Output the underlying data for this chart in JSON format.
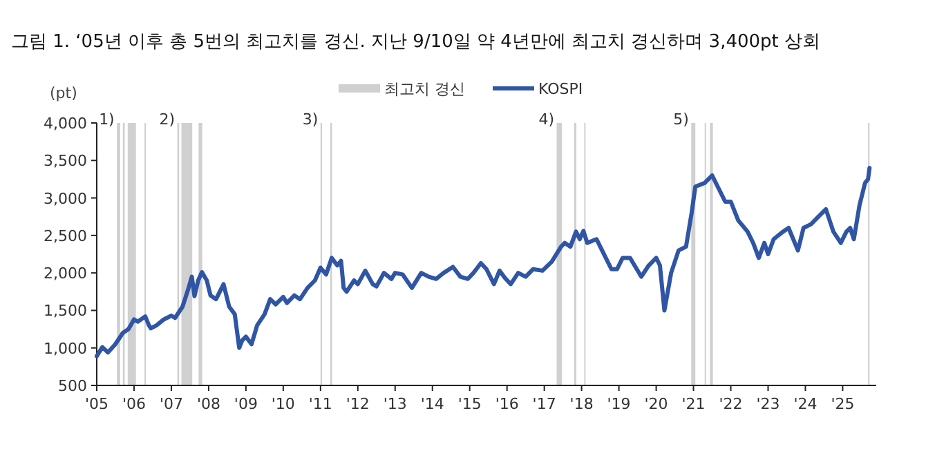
{
  "chart_data": {
    "type": "line",
    "title": "그림 1. ‘05년 이후 총 5번의 최고치를 경신. 지난 9/10일 약 4년만에 최고치 경신하며 3,400pt 상회",
    "ylabel": "(pt)",
    "legend": "top",
    "x": [
      2005.0,
      2005.15,
      2005.3,
      2005.5,
      2005.7,
      2005.85,
      2006.0,
      2006.1,
      2006.3,
      2006.4,
      2006.45,
      2006.6,
      2006.8,
      2007.0,
      2007.1,
      2007.3,
      2007.45,
      2007.55,
      2007.62,
      2007.72,
      2007.82,
      2007.95,
      2008.05,
      2008.2,
      2008.4,
      2008.55,
      2008.7,
      2008.82,
      2008.9,
      2009.0,
      2009.15,
      2009.3,
      2009.5,
      2009.65,
      2009.8,
      2010.0,
      2010.1,
      2010.3,
      2010.45,
      2010.65,
      2010.85,
      2011.0,
      2011.15,
      2011.3,
      2011.45,
      2011.55,
      2011.62,
      2011.7,
      2011.9,
      2012.0,
      2012.2,
      2012.4,
      2012.5,
      2012.7,
      2012.9,
      2013.0,
      2013.2,
      2013.45,
      2013.7,
      2013.9,
      2014.1,
      2014.3,
      2014.55,
      2014.75,
      2014.95,
      2015.1,
      2015.3,
      2015.45,
      2015.65,
      2015.8,
      2015.95,
      2016.1,
      2016.3,
      2016.5,
      2016.7,
      2016.95,
      2017.2,
      2017.45,
      2017.55,
      2017.7,
      2017.85,
      2017.95,
      2018.05,
      2018.15,
      2018.4,
      2018.55,
      2018.8,
      2018.95,
      2019.1,
      2019.3,
      2019.6,
      2019.8,
      2020.0,
      2020.1,
      2020.22,
      2020.4,
      2020.6,
      2020.8,
      2020.95,
      2021.05,
      2021.3,
      2021.5,
      2021.65,
      2021.85,
      2022.0,
      2022.2,
      2022.45,
      2022.6,
      2022.75,
      2022.9,
      2023.0,
      2023.15,
      2023.4,
      2023.55,
      2023.8,
      2023.95,
      2024.15,
      2024.35,
      2024.55,
      2024.75,
      2024.95,
      2025.1,
      2025.2,
      2025.3,
      2025.45,
      2025.6,
      2025.68,
      2025.72
    ],
    "series": [
      {
        "name": "KOSPI",
        "color": "#2f55a4",
        "values": [
          890,
          1010,
          940,
          1050,
          1200,
          1250,
          1380,
          1350,
          1420,
          1300,
          1260,
          1300,
          1380,
          1430,
          1400,
          1550,
          1780,
          1950,
          1690,
          1900,
          2010,
          1900,
          1700,
          1650,
          1850,
          1550,
          1450,
          1000,
          1100,
          1150,
          1050,
          1300,
          1450,
          1650,
          1580,
          1680,
          1600,
          1700,
          1650,
          1800,
          1900,
          2070,
          1980,
          2200,
          2100,
          2160,
          1800,
          1750,
          1900,
          1850,
          2030,
          1850,
          1820,
          2000,
          1920,
          2000,
          1980,
          1800,
          2000,
          1950,
          1920,
          2000,
          2080,
          1950,
          1920,
          2000,
          2130,
          2050,
          1850,
          2030,
          1930,
          1850,
          2000,
          1950,
          2050,
          2030,
          2150,
          2350,
          2400,
          2350,
          2550,
          2450,
          2560,
          2400,
          2450,
          2300,
          2050,
          2050,
          2200,
          2200,
          1950,
          2100,
          2200,
          2100,
          1500,
          2000,
          2300,
          2350,
          2800,
          3150,
          3200,
          3300,
          3150,
          2950,
          2950,
          2700,
          2550,
          2400,
          2200,
          2400,
          2250,
          2450,
          2550,
          2600,
          2300,
          2600,
          2650,
          2750,
          2850,
          2550,
          2400,
          2550,
          2600,
          2450,
          2900,
          3200,
          3250,
          3400
        ]
      }
    ],
    "xlim": [
      2005,
      2025.9
    ],
    "ylim": [
      500,
      4000
    ],
    "xticks": [
      {
        "value": 2005,
        "label": "'05"
      },
      {
        "value": 2006,
        "label": "'06"
      },
      {
        "value": 2007,
        "label": "'07"
      },
      {
        "value": 2008,
        "label": "'08"
      },
      {
        "value": 2009,
        "label": "'09"
      },
      {
        "value": 2010,
        "label": "'10"
      },
      {
        "value": 2011,
        "label": "'11"
      },
      {
        "value": 2012,
        "label": "'12"
      },
      {
        "value": 2013,
        "label": "'13"
      },
      {
        "value": 2014,
        "label": "'14"
      },
      {
        "value": 2015,
        "label": "'15"
      },
      {
        "value": 2016,
        "label": "'16"
      },
      {
        "value": 2017,
        "label": "'17"
      },
      {
        "value": 2018,
        "label": "'18"
      },
      {
        "value": 2019,
        "label": "'19"
      },
      {
        "value": 2020,
        "label": "'20"
      },
      {
        "value": 2021,
        "label": "'21"
      },
      {
        "value": 2022,
        "label": "'22"
      },
      {
        "value": 2023,
        "label": "'23"
      },
      {
        "value": 2024,
        "label": "'24"
      },
      {
        "value": 2025,
        "label": "'25"
      }
    ],
    "yticks": [
      {
        "value": 500,
        "label": "500"
      },
      {
        "value": 1000,
        "label": "1,000"
      },
      {
        "value": 1500,
        "label": "1,500"
      },
      {
        "value": 2000,
        "label": "2,000"
      },
      {
        "value": 2500,
        "label": "2,500"
      },
      {
        "value": 3000,
        "label": "3,000"
      },
      {
        "value": 3500,
        "label": "3,500"
      },
      {
        "value": 4000,
        "label": "4,000"
      }
    ],
    "bands": [
      {
        "axis": "x",
        "from": 2005.54,
        "to": 2005.63,
        "color": "#d0d0d0",
        "label": "최고치 경신"
      },
      {
        "axis": "x",
        "from": 2005.7,
        "to": 2005.75,
        "color": "#d0d0d0"
      },
      {
        "axis": "x",
        "from": 2005.83,
        "to": 2006.05,
        "color": "#d0d0d0"
      },
      {
        "axis": "x",
        "from": 2006.28,
        "to": 2006.32,
        "color": "#d0d0d0"
      },
      {
        "axis": "x",
        "from": 2007.16,
        "to": 2007.21,
        "color": "#d0d0d0"
      },
      {
        "axis": "x",
        "from": 2007.27,
        "to": 2007.56,
        "color": "#d0d0d0"
      },
      {
        "axis": "x",
        "from": 2007.73,
        "to": 2007.83,
        "color": "#d0d0d0"
      },
      {
        "axis": "x",
        "from": 2011.0,
        "to": 2011.04,
        "color": "#d0d0d0"
      },
      {
        "axis": "x",
        "from": 2011.26,
        "to": 2011.31,
        "color": "#d0d0d0"
      },
      {
        "axis": "x",
        "from": 2017.33,
        "to": 2017.47,
        "color": "#d0d0d0"
      },
      {
        "axis": "x",
        "from": 2017.8,
        "to": 2017.86,
        "color": "#d0d0d0"
      },
      {
        "axis": "x",
        "from": 2018.07,
        "to": 2018.1,
        "color": "#d0d0d0"
      },
      {
        "axis": "x",
        "from": 2020.94,
        "to": 2021.05,
        "color": "#d0d0d0"
      },
      {
        "axis": "x",
        "from": 2021.3,
        "to": 2021.33,
        "color": "#d0d0d0"
      },
      {
        "axis": "x",
        "from": 2021.44,
        "to": 2021.52,
        "color": "#d0d0d0"
      },
      {
        "axis": "x",
        "from": 2025.68,
        "to": 2025.72,
        "color": "#d0d0d0"
      }
    ],
    "annotations": [
      "1)",
      "2)",
      "3)",
      "4)",
      "5)"
    ]
  }
}
